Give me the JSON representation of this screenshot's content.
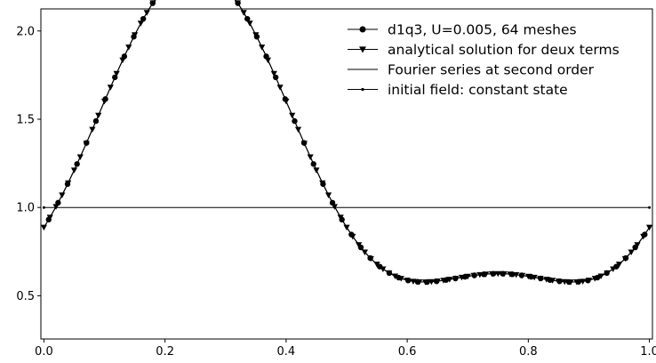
{
  "chart_data": {
    "type": "line",
    "xlim": [
      -0.005,
      1.005
    ],
    "ylim": [
      0.255,
      2.125
    ],
    "xticks": [
      0.0,
      0.2,
      0.4,
      0.6,
      0.8,
      1.0
    ],
    "xtick_labels": [
      "0.0",
      "0.2",
      "0.4",
      "0.6",
      "0.8",
      "1.0"
    ],
    "yticks": [
      0.5,
      1.0,
      1.5,
      2.0
    ],
    "ytick_labels": [
      "0.5",
      "1.0",
      "1.5",
      "2.0"
    ],
    "grid": false,
    "legend_position": "top-right",
    "series": [
      {
        "name": "d1q3, U=0.005, 64 meshes",
        "marker": "circle",
        "line": true,
        "color": "#000000",
        "function": "1.1875 + 0.8625*sin(2*pi*x) - 0.3*cos(4*pi*x)",
        "x_start": 0.0078125,
        "x_end": 0.9921875,
        "n_points": 64
      },
      {
        "name": "analytical solution for deux terms",
        "marker": "triangle-down",
        "line": true,
        "color": "#000000",
        "function": "1.1875 + 0.8625*sin(2*pi*x) - 0.3*cos(4*pi*x)",
        "x_start": 0.0,
        "x_end": 1.0,
        "n_points": 101
      },
      {
        "name": "Fourier series at second order",
        "marker": "none",
        "line": true,
        "color": "#000000",
        "function": "1.1875 + 0.8625*sin(2*pi*x) - 0.3*cos(4*pi*x)",
        "x_start": 0.0,
        "x_end": 1.0,
        "n_points": 400
      },
      {
        "name": "initial field: constant state",
        "marker": "point",
        "line": true,
        "color": "#000000",
        "x": [
          0.0,
          1.0
        ],
        "y": [
          1.0,
          1.0
        ]
      }
    ]
  }
}
